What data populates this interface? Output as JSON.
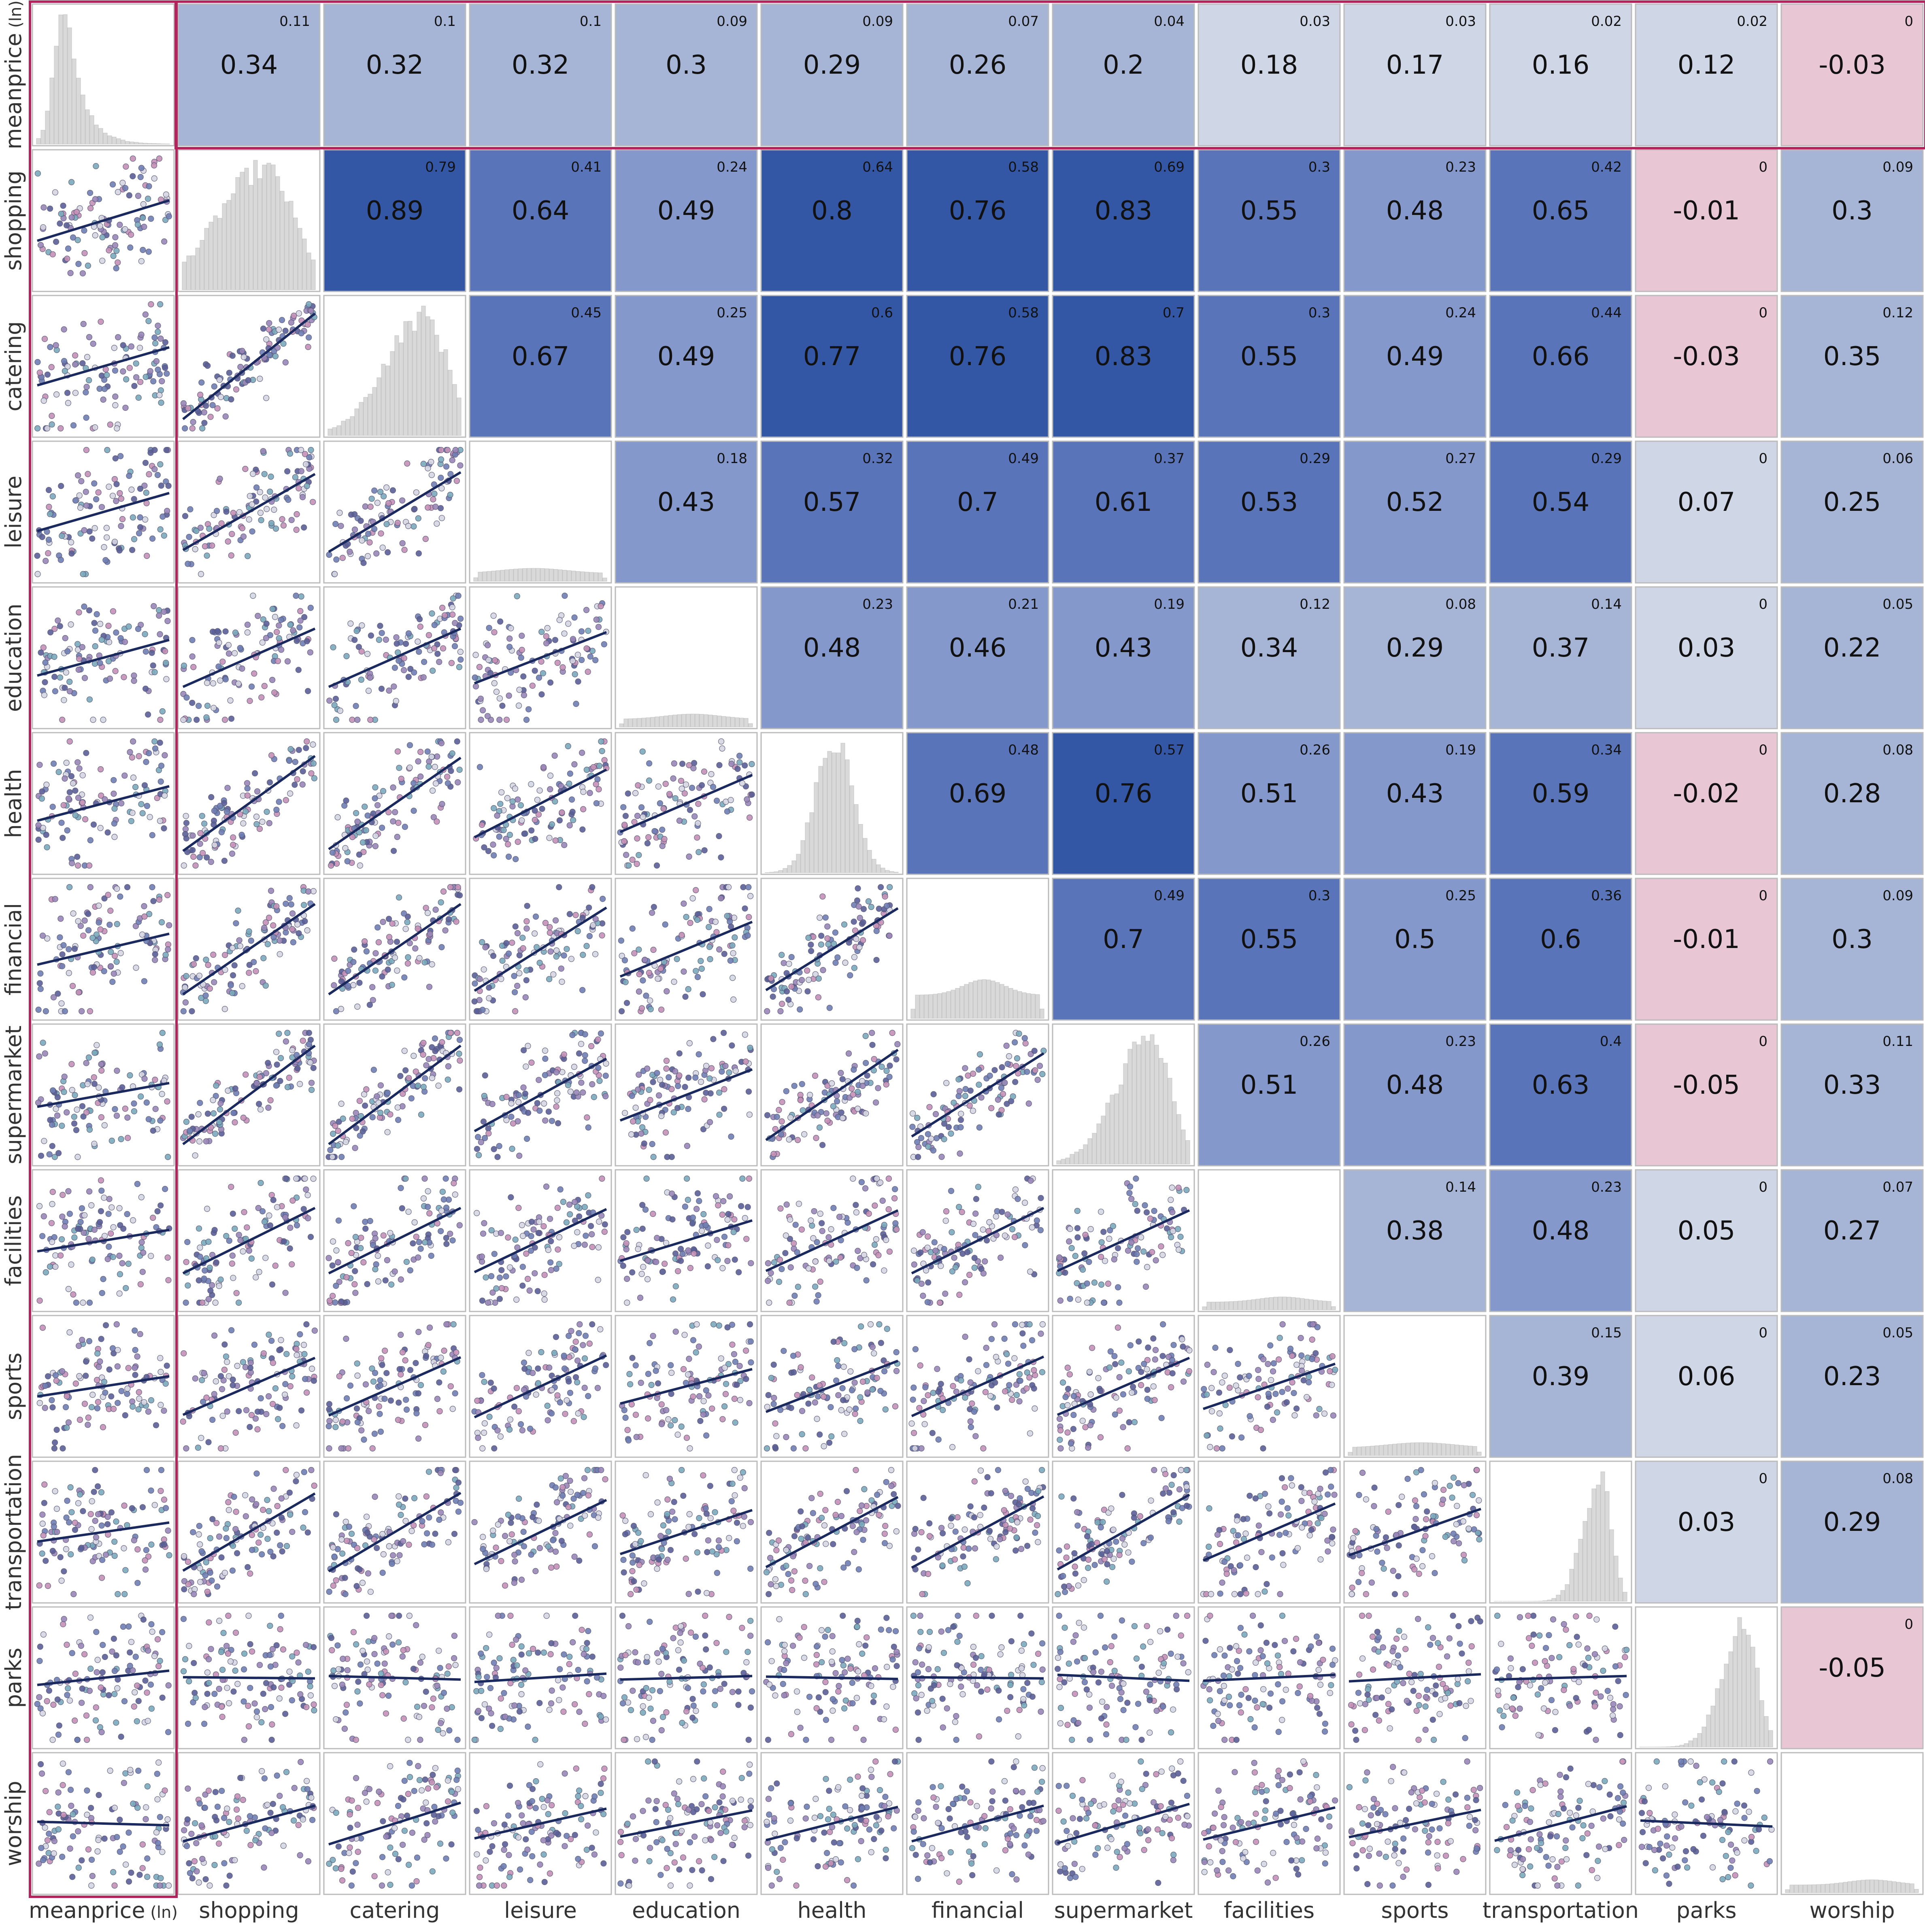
{
  "chart_data": {
    "type": "scatter-matrix",
    "variables": [
      {
        "name": "meanprice",
        "unit": "(ln)"
      },
      {
        "name": "shopping",
        "unit": ""
      },
      {
        "name": "catering",
        "unit": ""
      },
      {
        "name": "leisure",
        "unit": ""
      },
      {
        "name": "education",
        "unit": ""
      },
      {
        "name": "health",
        "unit": ""
      },
      {
        "name": "financial",
        "unit": ""
      },
      {
        "name": "supermarket",
        "unit": ""
      },
      {
        "name": "facilities",
        "unit": ""
      },
      {
        "name": "sports",
        "unit": ""
      },
      {
        "name": "transportation",
        "unit": ""
      },
      {
        "name": "parks",
        "unit": ""
      },
      {
        "name": "worship",
        "unit": ""
      }
    ],
    "correlations": [
      {
        "row": 0,
        "col": 1,
        "r": "0.34",
        "r2": "0.11"
      },
      {
        "row": 0,
        "col": 2,
        "r": "0.32",
        "r2": "0.1"
      },
      {
        "row": 0,
        "col": 3,
        "r": "0.32",
        "r2": "0.1"
      },
      {
        "row": 0,
        "col": 4,
        "r": "0.3",
        "r2": "0.09"
      },
      {
        "row": 0,
        "col": 5,
        "r": "0.29",
        "r2": "0.09"
      },
      {
        "row": 0,
        "col": 6,
        "r": "0.26",
        "r2": "0.07"
      },
      {
        "row": 0,
        "col": 7,
        "r": "0.2",
        "r2": "0.04"
      },
      {
        "row": 0,
        "col": 8,
        "r": "0.18",
        "r2": "0.03"
      },
      {
        "row": 0,
        "col": 9,
        "r": "0.17",
        "r2": "0.03"
      },
      {
        "row": 0,
        "col": 10,
        "r": "0.16",
        "r2": "0.02"
      },
      {
        "row": 0,
        "col": 11,
        "r": "0.12",
        "r2": "0.02"
      },
      {
        "row": 0,
        "col": 12,
        "r": "-0.03",
        "r2": "0"
      },
      {
        "row": 1,
        "col": 2,
        "r": "0.89",
        "r2": "0.79"
      },
      {
        "row": 1,
        "col": 3,
        "r": "0.64",
        "r2": "0.41"
      },
      {
        "row": 1,
        "col": 4,
        "r": "0.49",
        "r2": "0.24"
      },
      {
        "row": 1,
        "col": 5,
        "r": "0.8",
        "r2": "0.64"
      },
      {
        "row": 1,
        "col": 6,
        "r": "0.76",
        "r2": "0.58"
      },
      {
        "row": 1,
        "col": 7,
        "r": "0.83",
        "r2": "0.69"
      },
      {
        "row": 1,
        "col": 8,
        "r": "0.55",
        "r2": "0.3"
      },
      {
        "row": 1,
        "col": 9,
        "r": "0.48",
        "r2": "0.23"
      },
      {
        "row": 1,
        "col": 10,
        "r": "0.65",
        "r2": "0.42"
      },
      {
        "row": 1,
        "col": 11,
        "r": "-0.01",
        "r2": "0"
      },
      {
        "row": 1,
        "col": 12,
        "r": "0.3",
        "r2": "0.09"
      },
      {
        "row": 2,
        "col": 3,
        "r": "0.67",
        "r2": "0.45"
      },
      {
        "row": 2,
        "col": 4,
        "r": "0.49",
        "r2": "0.25"
      },
      {
        "row": 2,
        "col": 5,
        "r": "0.77",
        "r2": "0.6"
      },
      {
        "row": 2,
        "col": 6,
        "r": "0.76",
        "r2": "0.58"
      },
      {
        "row": 2,
        "col": 7,
        "r": "0.83",
        "r2": "0.7"
      },
      {
        "row": 2,
        "col": 8,
        "r": "0.55",
        "r2": "0.3"
      },
      {
        "row": 2,
        "col": 9,
        "r": "0.49",
        "r2": "0.24"
      },
      {
        "row": 2,
        "col": 10,
        "r": "0.66",
        "r2": "0.44"
      },
      {
        "row": 2,
        "col": 11,
        "r": "-0.03",
        "r2": "0"
      },
      {
        "row": 2,
        "col": 12,
        "r": "0.35",
        "r2": "0.12"
      },
      {
        "row": 3,
        "col": 4,
        "r": "0.43",
        "r2": "0.18"
      },
      {
        "row": 3,
        "col": 5,
        "r": "0.57",
        "r2": "0.32"
      },
      {
        "row": 3,
        "col": 6,
        "r": "0.7",
        "r2": "0.49"
      },
      {
        "row": 3,
        "col": 7,
        "r": "0.61",
        "r2": "0.37"
      },
      {
        "row": 3,
        "col": 8,
        "r": "0.53",
        "r2": "0.29"
      },
      {
        "row": 3,
        "col": 9,
        "r": "0.52",
        "r2": "0.27"
      },
      {
        "row": 3,
        "col": 10,
        "r": "0.54",
        "r2": "0.29"
      },
      {
        "row": 3,
        "col": 11,
        "r": "0.07",
        "r2": "0"
      },
      {
        "row": 3,
        "col": 12,
        "r": "0.25",
        "r2": "0.06"
      },
      {
        "row": 4,
        "col": 5,
        "r": "0.48",
        "r2": "0.23"
      },
      {
        "row": 4,
        "col": 6,
        "r": "0.46",
        "r2": "0.21"
      },
      {
        "row": 4,
        "col": 7,
        "r": "0.43",
        "r2": "0.19"
      },
      {
        "row": 4,
        "col": 8,
        "r": "0.34",
        "r2": "0.12"
      },
      {
        "row": 4,
        "col": 9,
        "r": "0.29",
        "r2": "0.08"
      },
      {
        "row": 4,
        "col": 10,
        "r": "0.37",
        "r2": "0.14"
      },
      {
        "row": 4,
        "col": 11,
        "r": "0.03",
        "r2": "0"
      },
      {
        "row": 4,
        "col": 12,
        "r": "0.22",
        "r2": "0.05"
      },
      {
        "row": 5,
        "col": 6,
        "r": "0.69",
        "r2": "0.48"
      },
      {
        "row": 5,
        "col": 7,
        "r": "0.76",
        "r2": "0.57"
      },
      {
        "row": 5,
        "col": 8,
        "r": "0.51",
        "r2": "0.26"
      },
      {
        "row": 5,
        "col": 9,
        "r": "0.43",
        "r2": "0.19"
      },
      {
        "row": 5,
        "col": 10,
        "r": "0.59",
        "r2": "0.34"
      },
      {
        "row": 5,
        "col": 11,
        "r": "-0.02",
        "r2": "0"
      },
      {
        "row": 5,
        "col": 12,
        "r": "0.28",
        "r2": "0.08"
      },
      {
        "row": 6,
        "col": 7,
        "r": "0.7",
        "r2": "0.49"
      },
      {
        "row": 6,
        "col": 8,
        "r": "0.55",
        "r2": "0.3"
      },
      {
        "row": 6,
        "col": 9,
        "r": "0.5",
        "r2": "0.25"
      },
      {
        "row": 6,
        "col": 10,
        "r": "0.6",
        "r2": "0.36"
      },
      {
        "row": 6,
        "col": 11,
        "r": "-0.01",
        "r2": "0"
      },
      {
        "row": 6,
        "col": 12,
        "r": "0.3",
        "r2": "0.09"
      },
      {
        "row": 7,
        "col": 8,
        "r": "0.51",
        "r2": "0.26"
      },
      {
        "row": 7,
        "col": 9,
        "r": "0.48",
        "r2": "0.23"
      },
      {
        "row": 7,
        "col": 10,
        "r": "0.63",
        "r2": "0.4"
      },
      {
        "row": 7,
        "col": 11,
        "r": "-0.05",
        "r2": "0"
      },
      {
        "row": 7,
        "col": 12,
        "r": "0.33",
        "r2": "0.11"
      },
      {
        "row": 8,
        "col": 9,
        "r": "0.38",
        "r2": "0.14"
      },
      {
        "row": 8,
        "col": 10,
        "r": "0.48",
        "r2": "0.23"
      },
      {
        "row": 8,
        "col": 11,
        "r": "0.05",
        "r2": "0"
      },
      {
        "row": 8,
        "col": 12,
        "r": "0.27",
        "r2": "0.07"
      },
      {
        "row": 9,
        "col": 10,
        "r": "0.39",
        "r2": "0.15"
      },
      {
        "row": 9,
        "col": 11,
        "r": "0.06",
        "r2": "0"
      },
      {
        "row": 9,
        "col": 12,
        "r": "0.23",
        "r2": "0.05"
      },
      {
        "row": 10,
        "col": 11,
        "r": "0.03",
        "r2": "0"
      },
      {
        "row": 10,
        "col": 12,
        "r": "0.29",
        "r2": "0.08"
      },
      {
        "row": 11,
        "col": 12,
        "r": "-0.05",
        "r2": "0"
      }
    ],
    "distributions": [
      {
        "shape": "right-skewed",
        "params": [
          0.22,
          0.08
        ]
      },
      {
        "shape": "left-skewed",
        "params": [
          0.62,
          0.22
        ]
      },
      {
        "shape": "left-skewed",
        "params": [
          0.72,
          0.18
        ]
      },
      {
        "shape": "flat-low",
        "params": [
          0.45,
          0.35
        ]
      },
      {
        "shape": "flat-low",
        "params": [
          0.55,
          0.3
        ]
      },
      {
        "shape": "bell",
        "params": [
          0.52,
          0.14
        ]
      },
      {
        "shape": "flat-mid",
        "params": [
          0.55,
          0.22
        ]
      },
      {
        "shape": "left-skewed",
        "params": [
          0.7,
          0.16
        ]
      },
      {
        "shape": "flat-low",
        "params": [
          0.6,
          0.25
        ]
      },
      {
        "shape": "flat-low",
        "params": [
          0.55,
          0.35
        ]
      },
      {
        "shape": "left-skewed",
        "params": [
          0.8,
          0.08
        ]
      },
      {
        "shape": "left-skewed",
        "params": [
          0.78,
          0.1
        ]
      },
      {
        "shape": "flat-low",
        "params": [
          0.65,
          0.25
        ]
      }
    ],
    "color_scale": {
      "negative": "#e8c6d4",
      "weak": "#cfd6e6",
      "low": "#a6b5d6",
      "mid": "#8598cb",
      "high": "#5a74b9",
      "strong": "#3357a5"
    },
    "highlight_color": "#b3245c",
    "histogram_color": "#d9d9d9",
    "point_colors": [
      "#6f7fb3",
      "#9a86b7",
      "#c591b6",
      "#7aaabb",
      "#5a5f96",
      "#d6d6e2"
    ],
    "regression_line_color": "#1b2a5e"
  }
}
